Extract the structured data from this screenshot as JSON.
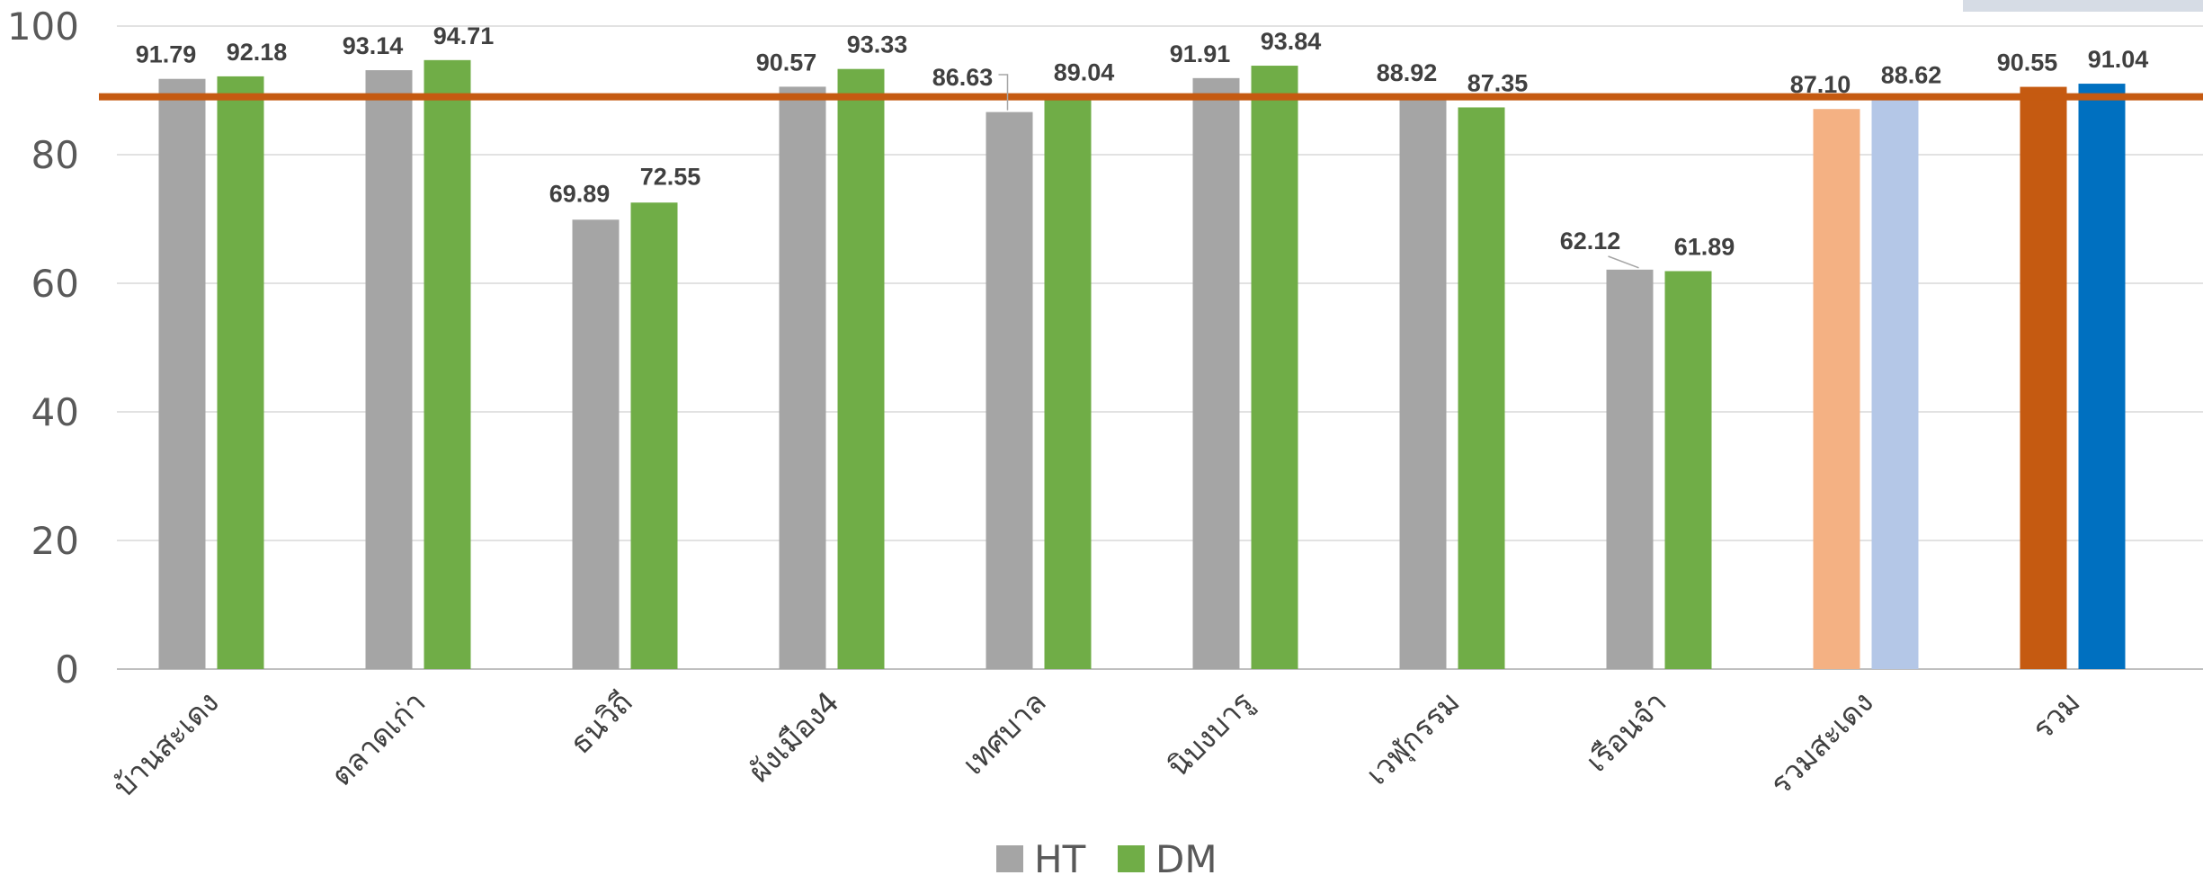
{
  "chart_data": {
    "type": "bar",
    "categories": [
      "บ้านสะเดง",
      "ตลาดเก่า",
      "ธนวิถี",
      "ผังเมือง4",
      "เทศบาล",
      "นิบงบารู",
      "เวฬุกรรม",
      "เรือนจำ",
      "รวมสะเดง",
      "รวม"
    ],
    "series": [
      {
        "name": "HT",
        "values": [
          91.79,
          93.14,
          69.89,
          90.57,
          86.63,
          91.91,
          88.92,
          62.12,
          87.1,
          90.55
        ]
      },
      {
        "name": "DM",
        "values": [
          92.18,
          94.71,
          72.55,
          93.33,
          89.04,
          93.84,
          87.35,
          61.89,
          88.62,
          91.04
        ]
      }
    ],
    "data_labels": {
      "HT": [
        "91.79",
        "93.14",
        "69.89",
        "90.57",
        "86.63",
        "91.91",
        "88.92",
        "62.12",
        "87.10",
        "90.55"
      ],
      "DM": [
        "92.18",
        "94.71",
        "72.55",
        "93.33",
        "89.04",
        "93.84",
        "87.35",
        "61.89",
        "88.62",
        "91.04"
      ]
    },
    "ylim": [
      0,
      100
    ],
    "yticks": [
      "0",
      "20",
      "40",
      "60",
      "80",
      "100"
    ],
    "grid": true,
    "legend_position": "bottom-center",
    "target_line": {
      "value": 89,
      "color": "#C55A11"
    },
    "colors": {
      "HT": "#A5A5A5",
      "DM": "#70AD47",
      "HT_highlight_rows": [
        "#F4B183",
        "#C55A11"
      ],
      "DM_highlight_rows": [
        "#B4C7E7",
        "#0070C0"
      ]
    }
  }
}
